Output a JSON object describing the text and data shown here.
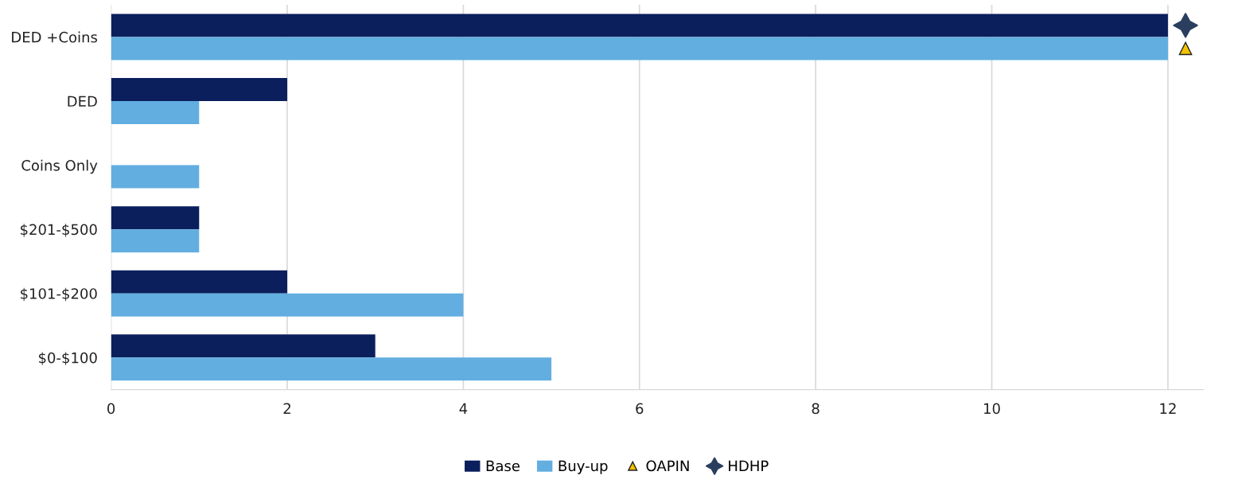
{
  "chart_data": {
    "type": "bar",
    "orientation": "horizontal",
    "categories": [
      "DED +Coins",
      "DED",
      "Coins Only",
      "$201-$500",
      "$101-$200",
      "$0-$100"
    ],
    "series": [
      {
        "name": "Base",
        "color": "#0b1f5c",
        "values": [
          12,
          2,
          0,
          1,
          2,
          3
        ]
      },
      {
        "name": "Buy-up",
        "color": "#62aee0",
        "values": [
          12,
          1,
          1,
          1,
          4,
          5
        ]
      },
      {
        "name": "OAPIN",
        "type": "scatter",
        "marker": "triangle",
        "color": "#f2c200",
        "values": [
          12.2,
          null,
          null,
          null,
          null,
          null
        ]
      },
      {
        "name": "HDHP",
        "type": "scatter",
        "marker": "star",
        "color": "#2a3f5f",
        "values": [
          12.2,
          null,
          null,
          null,
          null,
          null
        ]
      }
    ],
    "xlim": [
      0,
      12.4
    ],
    "xticks": [
      0,
      2,
      4,
      6,
      8,
      10,
      12
    ],
    "grid": "x",
    "legend": "bottom"
  }
}
